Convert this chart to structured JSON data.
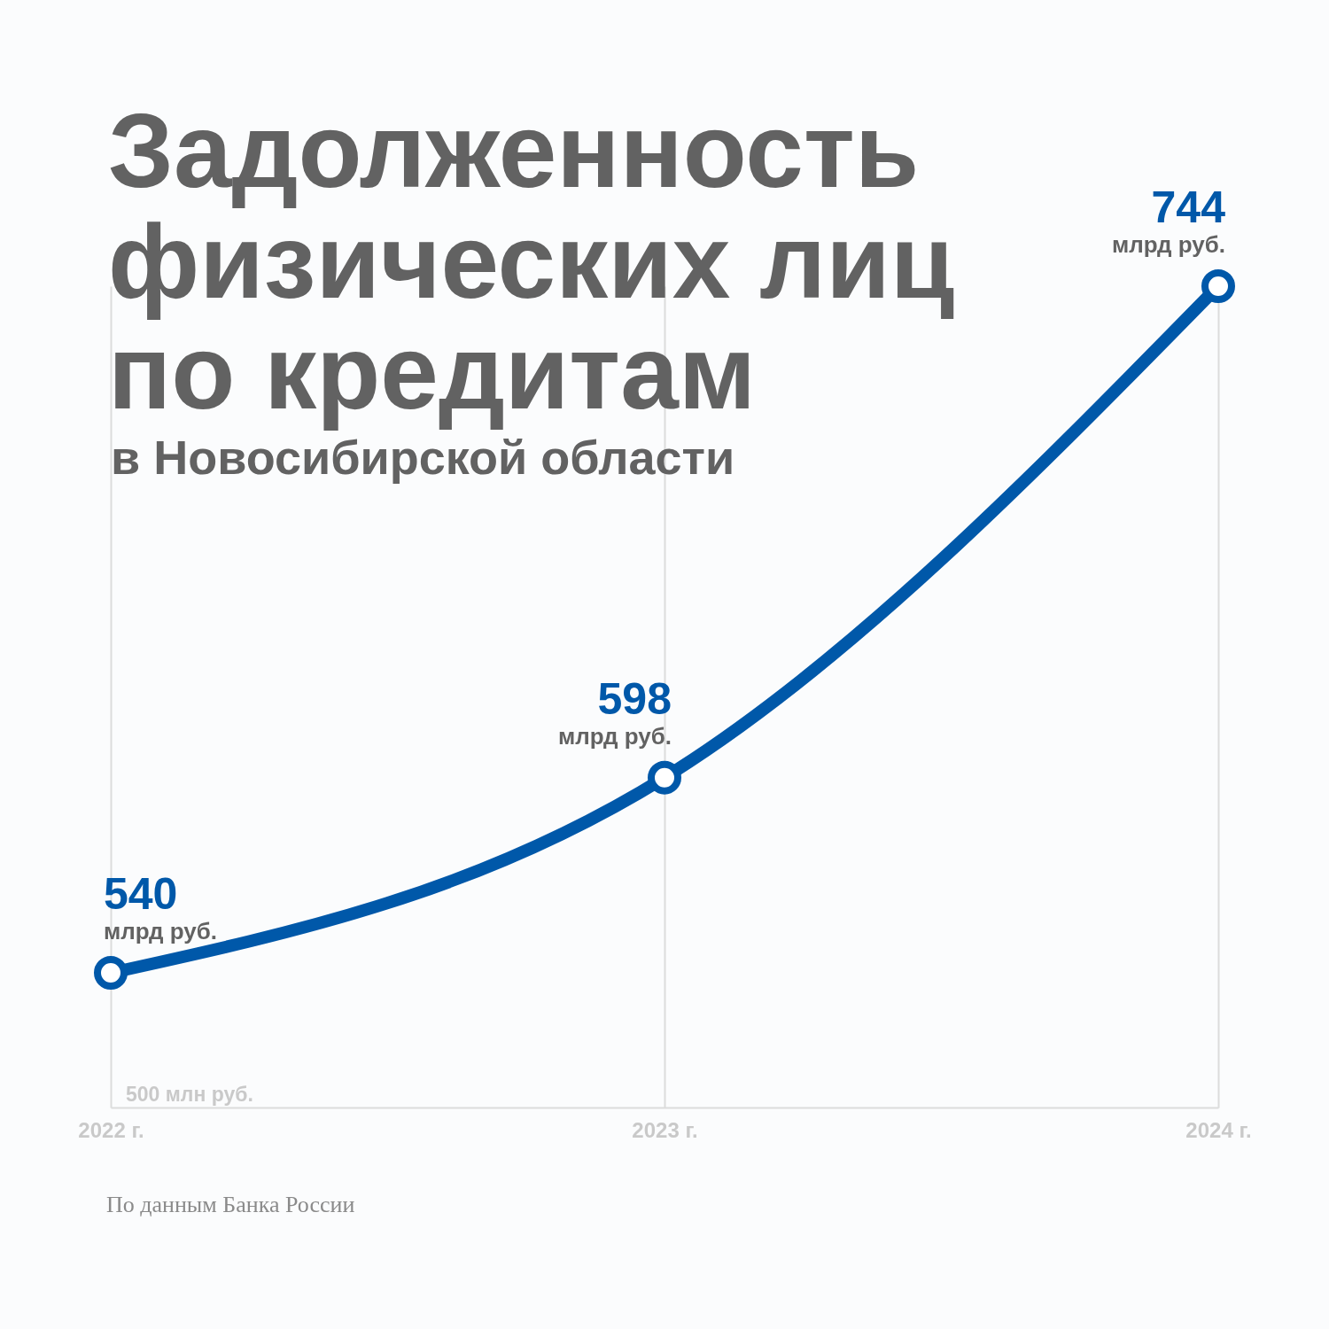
{
  "chart_data": {
    "type": "line",
    "title": "Задолженность физических лиц по кредитам",
    "subtitle": "в Новосибирской области",
    "categories": [
      "2022 г.",
      "2023 г.",
      "2024 г."
    ],
    "series": [
      {
        "color": "#0058a9",
        "values": [
          540,
          598,
          744
        ]
      }
    ],
    "data_labels": true,
    "grid": "x",
    "marker": "circle",
    "line_style": "solid",
    "ylim": [
      500,
      744
    ],
    "annotations": [
      "500 млн руб.",
      {
        "text": "млрд руб.",
        "x": "2022 г.",
        "y": 540
      },
      {
        "text": "млрд руб.",
        "x": "2023 г.",
        "y": 598
      },
      {
        "text": "млрд руб.",
        "x": "2024 г.",
        "y": 744
      },
      "По данным Банка России"
    ]
  }
}
